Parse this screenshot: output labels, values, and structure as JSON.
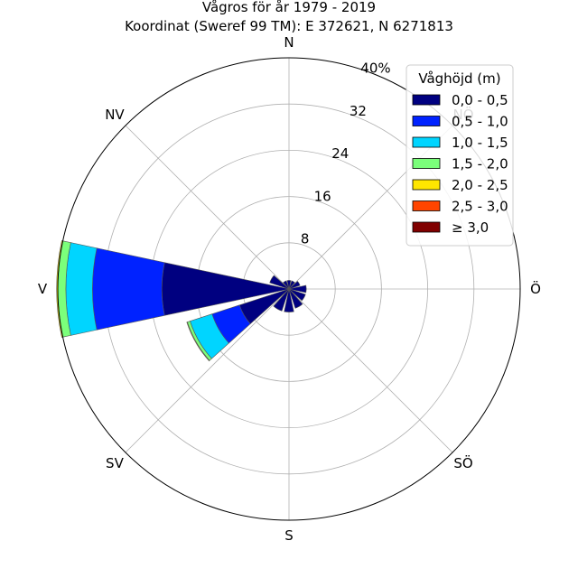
{
  "chart_data": {
    "type": "windrose",
    "title_line1": "Vågros för år 1979 - 2019",
    "title_line2": "Koordinat (Sweref 99 TM): E 372621, N 6271813",
    "direction_labels": [
      "N",
      "NV",
      "V",
      "SV",
      "S",
      "SÖ",
      "Ö",
      "NÖ"
    ],
    "radial_tick_labels": [
      "8",
      "16",
      "24",
      "32",
      "40%"
    ],
    "radial_max": 40,
    "legend": {
      "title": "Våghöjd (m)",
      "placement": "top-right",
      "bins": [
        {
          "label": "0,0 - 0,5",
          "color": "#000080"
        },
        {
          "label": "0,5 - 1,0",
          "color": "#0022ff"
        },
        {
          "label": "1,0 - 1,5",
          "color": "#00d5ff"
        },
        {
          "label": "1,5 - 2,0",
          "color": "#7bff7b"
        },
        {
          "label": "2,0 - 2,5",
          "color": "#ffe600"
        },
        {
          "label": "2,5 - 3,0",
          "color": "#ff4500"
        },
        {
          "label": "≥ 3,0",
          "color": "#800000"
        }
      ]
    },
    "sectors": [
      {
        "direction_deg": 0,
        "values": [
          1.5,
          0,
          0,
          0,
          0,
          0,
          0
        ]
      },
      {
        "direction_deg": 30,
        "values": [
          1.5,
          0,
          0,
          0,
          0,
          0,
          0
        ]
      },
      {
        "direction_deg": 60,
        "values": [
          2.0,
          0,
          0,
          0,
          0,
          0,
          0
        ]
      },
      {
        "direction_deg": 90,
        "values": [
          3.0,
          0,
          0,
          0,
          0,
          0,
          0
        ]
      },
      {
        "direction_deg": 120,
        "values": [
          3.0,
          0,
          0,
          0,
          0,
          0,
          0
        ]
      },
      {
        "direction_deg": 150,
        "values": [
          3.5,
          0,
          0,
          0,
          0,
          0,
          0
        ]
      },
      {
        "direction_deg": 180,
        "values": [
          4.0,
          0,
          0,
          0,
          0,
          0,
          0
        ]
      },
      {
        "direction_deg": 210,
        "values": [
          4.0,
          0,
          0,
          0,
          0,
          0,
          0
        ]
      },
      {
        "direction_deg": 240,
        "values": [
          9.0,
          5.0,
          4.0,
          0.5,
          0.1,
          0,
          0
        ]
      },
      {
        "direction_deg": 270,
        "values": [
          22.0,
          12.0,
          4.6,
          1.4,
          0.2,
          0,
          0
        ]
      },
      {
        "direction_deg": 300,
        "values": [
          3.5,
          0,
          0,
          0,
          0,
          0,
          0
        ]
      },
      {
        "direction_deg": 330,
        "values": [
          1.5,
          0,
          0,
          0,
          0,
          0,
          0
        ]
      }
    ],
    "grid": true
  }
}
